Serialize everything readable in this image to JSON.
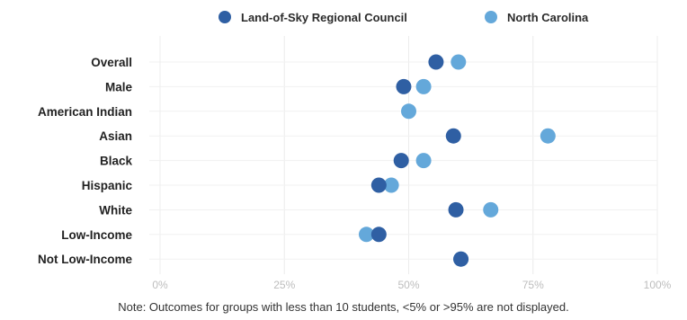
{
  "chart_data": {
    "type": "scatter",
    "categories": [
      "Overall",
      "Male",
      "American Indian",
      "Asian",
      "Black",
      "Hispanic",
      "White",
      "Low-Income",
      "Not Low-Income"
    ],
    "series": [
      {
        "name": "Land-of-Sky Regional Council",
        "color": "#2f5fa3",
        "values": [
          55.5,
          49,
          null,
          59,
          48.5,
          44,
          59.5,
          44,
          60.5
        ]
      },
      {
        "name": "North Carolina",
        "color": "#64a8da",
        "values": [
          60,
          53,
          50,
          78,
          53,
          46.5,
          66.5,
          41.5,
          60.5
        ]
      }
    ],
    "xlim": [
      0,
      100
    ],
    "xticks": [
      "0%",
      "25%",
      "50%",
      "75%",
      "100%"
    ],
    "grid": true,
    "legend_position": "top"
  },
  "note": "Note: Outcomes for groups with less than 10 students, <5% or >95% are not displayed."
}
